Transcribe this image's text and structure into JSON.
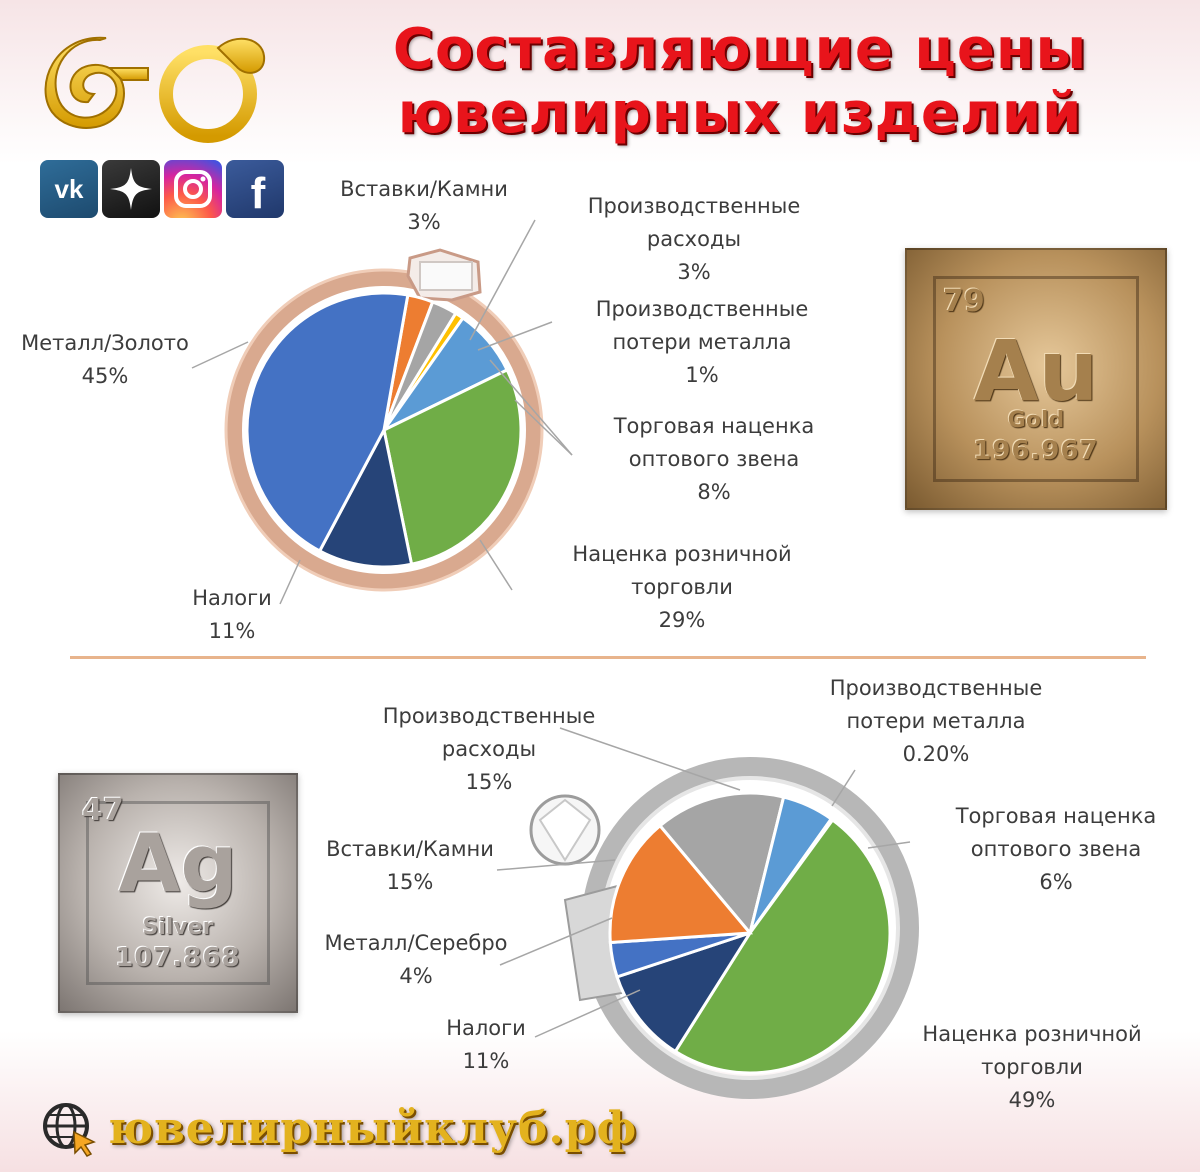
{
  "title": {
    "line1": "Составляющие цены",
    "line2": "ювелирных изделий"
  },
  "logo": {
    "icon": "jewelry-club-logo"
  },
  "social": [
    {
      "name": "vk",
      "icon": "vk-icon"
    },
    {
      "name": "zen",
      "icon": "zen-icon"
    },
    {
      "name": "instagram",
      "icon": "instagram-icon"
    },
    {
      "name": "facebook",
      "icon": "facebook-icon"
    }
  ],
  "tiles": {
    "gold": {
      "number": "79",
      "symbol": "Au",
      "name": "Gold",
      "weight": "196.967"
    },
    "silver": {
      "number": "47",
      "symbol": "Ag",
      "name": "Silver",
      "weight": "107.868"
    }
  },
  "footer": {
    "site": "ювелирныйклуб.рф",
    "icon": "globe-cursor-icon"
  },
  "colors": {
    "title": "#e8141b",
    "divider": "#e8b48c",
    "metal": "#4472c4",
    "stones": "#ed7d31",
    "production_costs": "#a5a5a5",
    "metal_losses": "#ffc000",
    "wholesale_markup": "#5b9bd5",
    "retail_markup": "#70ad47",
    "taxes": "#264478"
  },
  "chart_data": [
    {
      "type": "pie",
      "title": "",
      "categories": [
        "Металл/Золото",
        "Вставки/Камни",
        "Производственные расходы",
        "Производственные потери металла",
        "Торговая наценка оптового звена",
        "Наценка розничной торговли",
        "Налоги"
      ],
      "values": [
        45,
        3,
        3,
        1,
        8,
        29,
        11
      ],
      "value_labels": [
        "45%",
        "3%",
        "3%",
        "1%",
        "8%",
        "29%",
        "11%"
      ],
      "label_lines": [
        [
          "Металл/Золото"
        ],
        [
          "Вставки/Камни"
        ],
        [
          "Производственные",
          "расходы"
        ],
        [
          "Производственные",
          "потери металла"
        ],
        [
          "Торговая наценка",
          "оптового звена"
        ],
        [
          "Наценка розничной",
          "торговли"
        ],
        [
          "Налоги"
        ]
      ],
      "colors": [
        "#4472c4",
        "#ed7d31",
        "#a5a5a5",
        "#ffc000",
        "#5b9bd5",
        "#70ad47",
        "#264478"
      ]
    },
    {
      "type": "pie",
      "title": "",
      "categories": [
        "Металл/Серебро",
        "Вставки/Камни",
        "Производственные расходы",
        "Производственные потери металла",
        "Торговая наценка оптового звена",
        "Наценка розничной торговли",
        "Налоги"
      ],
      "values": [
        4,
        15,
        15,
        0.2,
        6,
        49,
        11
      ],
      "value_labels": [
        "4%",
        "15%",
        "15%",
        "0.20%",
        "6%",
        "49%",
        "11%"
      ],
      "label_lines": [
        [
          "Металл/Серебро"
        ],
        [
          "Вставки/Камни"
        ],
        [
          "Производственные",
          "расходы"
        ],
        [
          "Производственные",
          "потери металла"
        ],
        [
          "Торговая наценка",
          "оптового звена"
        ],
        [
          "Наценка розничной",
          "торговли"
        ],
        [
          "Налоги"
        ]
      ],
      "colors": [
        "#4472c4",
        "#ed7d31",
        "#a5a5a5",
        "#ffc000",
        "#5b9bd5",
        "#70ad47",
        "#264478"
      ]
    }
  ]
}
